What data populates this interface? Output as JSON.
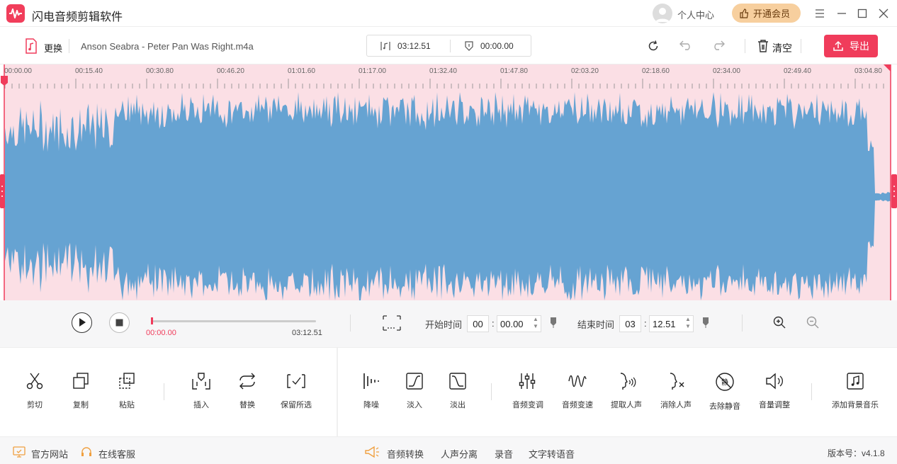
{
  "app": {
    "title": "闪电音频剪辑软件"
  },
  "titlebar": {
    "user_center": "个人中心",
    "vip_button": "开通会员"
  },
  "toolbar": {
    "replace_label": "更换",
    "file_name": "Anson Seabra - Peter Pan Was Right.m4a",
    "total_time": "03:12.51",
    "current_time": "00:00.00",
    "clear_label": "清空",
    "export_label": "导出"
  },
  "timeline": {
    "ticks": [
      "00:00.00",
      "00:15.40",
      "00:30.80",
      "00:46.20",
      "01:01.60",
      "01:17.00",
      "01:32.40",
      "01:47.80",
      "02:03.20",
      "02:18.60",
      "02:34.00",
      "02:49.40",
      "03:04.80"
    ]
  },
  "playback": {
    "position": "00:00.00",
    "duration": "03:12.51",
    "progress": 0,
    "start_label": "开始时间",
    "start_min": "00",
    "start_sec": "00.00",
    "end_label": "结束时间",
    "end_min": "03",
    "end_sec": "12.51"
  },
  "tools_left": [
    {
      "label": "剪切",
      "icon": "scissors-icon"
    },
    {
      "label": "复制",
      "icon": "copy-icon"
    },
    {
      "label": "粘贴",
      "icon": "paste-icon"
    },
    {
      "label": "插入",
      "icon": "insert-icon"
    },
    {
      "label": "替换",
      "icon": "replace-icon"
    },
    {
      "label": "保留所选",
      "icon": "keep-selection-icon"
    }
  ],
  "tools_right": [
    {
      "label": "降噪",
      "icon": "denoise-icon"
    },
    {
      "label": "淡入",
      "icon": "fade-in-icon"
    },
    {
      "label": "淡出",
      "icon": "fade-out-icon"
    },
    {
      "label": "音频变调",
      "icon": "pitch-icon"
    },
    {
      "label": "音频变速",
      "icon": "speed-icon"
    },
    {
      "label": "提取人声",
      "icon": "extract-vocal-icon"
    },
    {
      "label": "消除人声",
      "icon": "remove-vocal-icon"
    },
    {
      "label": "去除静音",
      "icon": "remove-silence-icon"
    },
    {
      "label": "音量调整",
      "icon": "volume-icon"
    },
    {
      "label": "添加背景音乐",
      "icon": "bg-music-icon"
    }
  ],
  "footer": {
    "website": "官方网站",
    "support": "在线客服",
    "convert": "音频转换",
    "vocal_separation": "人声分离",
    "record": "录音",
    "tts": "文字转语音",
    "version": "版本号：v4.1.8"
  },
  "colors": {
    "accent": "#f03c5b",
    "waveform": "#66a3d2",
    "wave_bg": "#fbdfe5"
  }
}
